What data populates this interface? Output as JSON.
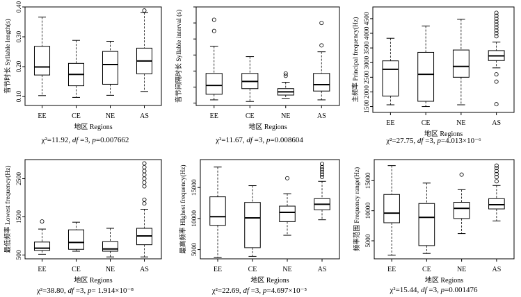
{
  "chart_data": [
    {
      "type": "boxplot",
      "ylabel": "音节时长 Syllable length(s)",
      "xlabel": "地区 Regions",
      "categories": [
        "EE",
        "CE",
        "NE",
        "AS"
      ],
      "ylim": [
        0.07,
        0.4
      ],
      "yticks": [
        0.1,
        0.2,
        0.3,
        0.4
      ],
      "ytick_labels": [
        "0.10",
        "0.20",
        "0.30",
        "0.40"
      ],
      "boxes": [
        {
          "whisker_low": 0.103,
          "q1": 0.172,
          "median": 0.199,
          "q3": 0.268,
          "whisker_high": 0.366,
          "outliers": []
        },
        {
          "whisker_low": 0.097,
          "q1": 0.136,
          "median": 0.174,
          "q3": 0.211,
          "whisker_high": 0.288,
          "outliers": []
        },
        {
          "whisker_low": 0.104,
          "q1": 0.141,
          "median": 0.207,
          "q3": 0.251,
          "whisker_high": 0.285,
          "outliers": []
        },
        {
          "whisker_low": 0.117,
          "q1": 0.176,
          "median": 0.219,
          "q3": 0.262,
          "whisker_high": 0.381,
          "outliers": [
            0.388
          ]
        }
      ],
      "stat": {
        "chi": "χ²=11.92, ",
        "df": "df",
        "df_rest": " =3, ",
        "p": "p",
        "p_rest": "=0.007662"
      }
    },
    {
      "type": "boxplot",
      "ylabel": "音节间隔时长 Syllable interval (s)",
      "xlabel": "地区 Regions",
      "categories": [
        "EE",
        "CE",
        "NE",
        "AS"
      ],
      "ylim": [
        -0.15,
        6.0
      ],
      "yticks": [
        0,
        1,
        2,
        3,
        4,
        5,
        6
      ],
      "ytick_labels": [
        "",
        "",
        "",
        "",
        "",
        "",
        ""
      ],
      "boxes": [
        {
          "whisker_low": 0.2,
          "q1": 0.55,
          "median": 1.1,
          "q3": 1.85,
          "whisker_high": 3.55,
          "outliers": [
            4.5,
            5.2
          ]
        },
        {
          "whisker_low": 0.1,
          "q1": 0.9,
          "median": 1.35,
          "q3": 1.85,
          "whisker_high": 2.9,
          "outliers": []
        },
        {
          "whisker_low": 0.3,
          "q1": 0.5,
          "median": 0.7,
          "q3": 0.9,
          "whisker_high": 1.3,
          "outliers": [
            1.7,
            1.85
          ]
        },
        {
          "whisker_low": 0.2,
          "q1": 0.75,
          "median": 1.15,
          "q3": 1.85,
          "whisker_high": 3.2,
          "outliers": [
            3.6,
            5.0
          ]
        }
      ],
      "stat": {
        "chi": "χ²=11.67, ",
        "df": "df",
        "df_rest": " =3, ",
        "p": "p",
        "p_rest": "=0.008604"
      }
    },
    {
      "type": "boxplot",
      "ylabel": "主频率 Principal frequency(Hz)",
      "xlabel": "地区 Regions",
      "categories": [
        "EE",
        "CE",
        "NE",
        "AS"
      ],
      "ylim": [
        1300,
        4900
      ],
      "yticks": [
        1500,
        2000,
        2500,
        3000,
        3500,
        4000,
        4500
      ],
      "ytick_labels": [
        "1500",
        "2000",
        "2500",
        "3000",
        "3500",
        "4000",
        "4500"
      ],
      "boxes": [
        {
          "whisker_low": 1560,
          "q1": 1860,
          "median": 2770,
          "q3": 3060,
          "whisker_high": 3830,
          "outliers": []
        },
        {
          "whisker_low": 1500,
          "q1": 1680,
          "median": 2600,
          "q3": 3350,
          "whisker_high": 4250,
          "outliers": []
        },
        {
          "whisker_low": 1560,
          "q1": 2500,
          "median": 2870,
          "q3": 3430,
          "whisker_high": 4480,
          "outliers": []
        },
        {
          "whisker_low": 2820,
          "q1": 3070,
          "median": 3230,
          "q3": 3410,
          "whisker_high": 3700,
          "outliers": [
            1580,
            2350,
            2600,
            3900,
            4000,
            4100,
            4200,
            4300,
            4400,
            4500,
            4600,
            4700
          ]
        }
      ],
      "stat": {
        "chi": "χ²=27.75, ",
        "df": "df",
        "df_rest": " =3, ",
        "p": "p",
        "p_rest": "=4.013×10⁻⁶"
      }
    },
    {
      "type": "boxplot",
      "ylabel": "最低频率 Lowest frequency(Hz)",
      "xlabel": "地区 Regions",
      "categories": [
        "EE",
        "CE",
        "NE",
        "AS"
      ],
      "ylim": [
        400,
        3000
      ],
      "yticks": [
        500,
        1500,
        2500
      ],
      "ytick_labels": [
        "500",
        "1500",
        "2500"
      ],
      "boxes": [
        {
          "whisker_low": 520,
          "q1": 620,
          "median": 680,
          "q3": 840,
          "whisker_high": 1180,
          "outliers": [
            1380
          ]
        },
        {
          "whisker_low": 600,
          "q1": 650,
          "median": 830,
          "q3": 1160,
          "whisker_high": 1360,
          "outliers": []
        },
        {
          "whisker_low": 450,
          "q1": 600,
          "median": 660,
          "q3": 850,
          "whisker_high": 1200,
          "outliers": []
        },
        {
          "whisker_low": 450,
          "q1": 770,
          "median": 1000,
          "q3": 1200,
          "whisker_high": 1700,
          "outliers": [
            1850,
            1950,
            2300,
            2400,
            2500,
            2600,
            2700,
            2800,
            2900
          ]
        }
      ],
      "stat": {
        "chi": "χ²=38.80, ",
        "df": "df",
        "df_rest": " =3, ",
        "p": "p",
        "p_rest": "= 1.914×10⁻⁸"
      }
    },
    {
      "type": "boxplot",
      "ylabel": "最高频率 HIghest frequency(Hz)",
      "xlabel": "地区 Regions",
      "categories": [
        "EE",
        "CE",
        "NE",
        "AS"
      ],
      "ylim": [
        3500,
        19500
      ],
      "yticks": [
        5000,
        10000,
        15000
      ],
      "ytick_labels": [
        "5000",
        "10000",
        "15000"
      ],
      "boxes": [
        {
          "whisker_low": 3700,
          "q1": 8900,
          "median": 10300,
          "q3": 13500,
          "whisker_high": 18300,
          "outliers": []
        },
        {
          "whisker_low": 3900,
          "q1": 5300,
          "median": 10100,
          "q3": 12600,
          "whisker_high": 15300,
          "outliers": []
        },
        {
          "whisker_low": 7300,
          "q1": 9500,
          "median": 11000,
          "q3": 12000,
          "whisker_high": 14000,
          "outliers": [
            16500
          ]
        },
        {
          "whisker_low": 9800,
          "q1": 11400,
          "median": 12300,
          "q3": 13200,
          "whisker_high": 16000,
          "outliers": [
            16700,
            17100,
            17500,
            17900,
            18300,
            18800
          ]
        }
      ],
      "stat": {
        "chi": "χ²=22.69, ",
        "df": "df",
        "df_rest": " =3, ",
        "p": "p",
        "p_rest": "=4.697×10⁻⁵"
      }
    },
    {
      "type": "boxplot",
      "ylabel": "频率范围 Frequency range(Hz)",
      "xlabel": "地区 Regions",
      "categories": [
        "EE",
        "CE",
        "NE",
        "AS"
      ],
      "ylim": [
        2000,
        18500
      ],
      "yticks": [
        5000,
        10000,
        15000
      ],
      "ytick_labels": [
        "5000",
        "10000",
        "15000"
      ],
      "boxes": [
        {
          "whisker_low": 2600,
          "q1": 8000,
          "median": 9600,
          "q3": 12700,
          "whisker_high": 17500,
          "outliers": []
        },
        {
          "whisker_low": 2900,
          "q1": 4200,
          "median": 8900,
          "q3": 11200,
          "whisker_high": 14600,
          "outliers": []
        },
        {
          "whisker_low": 6200,
          "q1": 8700,
          "median": 10400,
          "q3": 11400,
          "whisker_high": 13500,
          "outliers": [
            16000
          ]
        },
        {
          "whisker_low": 8300,
          "q1": 10300,
          "median": 11000,
          "q3": 12000,
          "whisker_high": 14200,
          "outliers": [
            14900,
            15600,
            16100,
            16600,
            17100,
            17500
          ]
        }
      ],
      "stat": {
        "chi": "χ²=15.44, ",
        "df": "df",
        "df_rest": " =3, ",
        "p": "p",
        "p_rest": "=0.001476"
      }
    }
  ]
}
